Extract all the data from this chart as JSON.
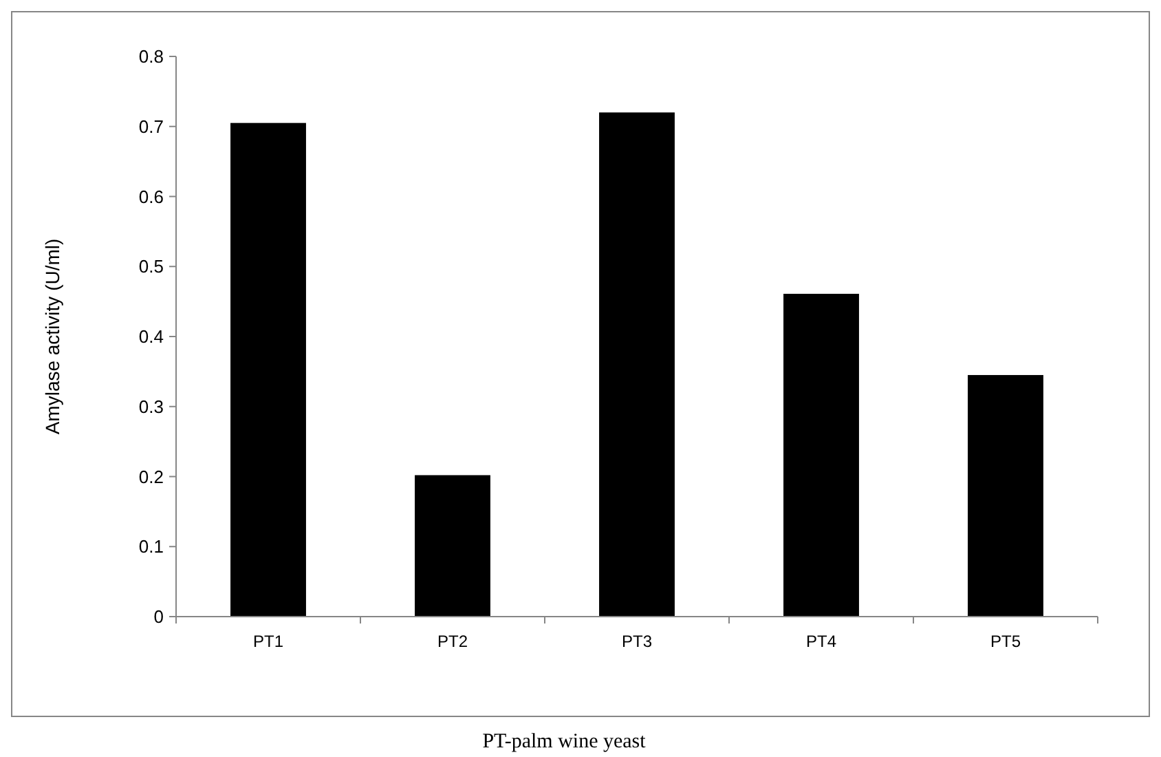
{
  "chart_data": {
    "type": "bar",
    "xlabel": "PT-palm wine yeast",
    "ylabel": "Amylase activity (U/ml)",
    "categories": [
      "PT1",
      "PT2",
      "PT3",
      "PT4",
      "PT5"
    ],
    "values": [
      0.705,
      0.202,
      0.72,
      0.461,
      0.345
    ],
    "color": "#000000",
    "ylim": [
      0,
      0.8
    ],
    "yticks": [
      0,
      0.1,
      0.2,
      0.3,
      0.4,
      0.5,
      0.6,
      0.7,
      0.8
    ],
    "grid": false
  }
}
